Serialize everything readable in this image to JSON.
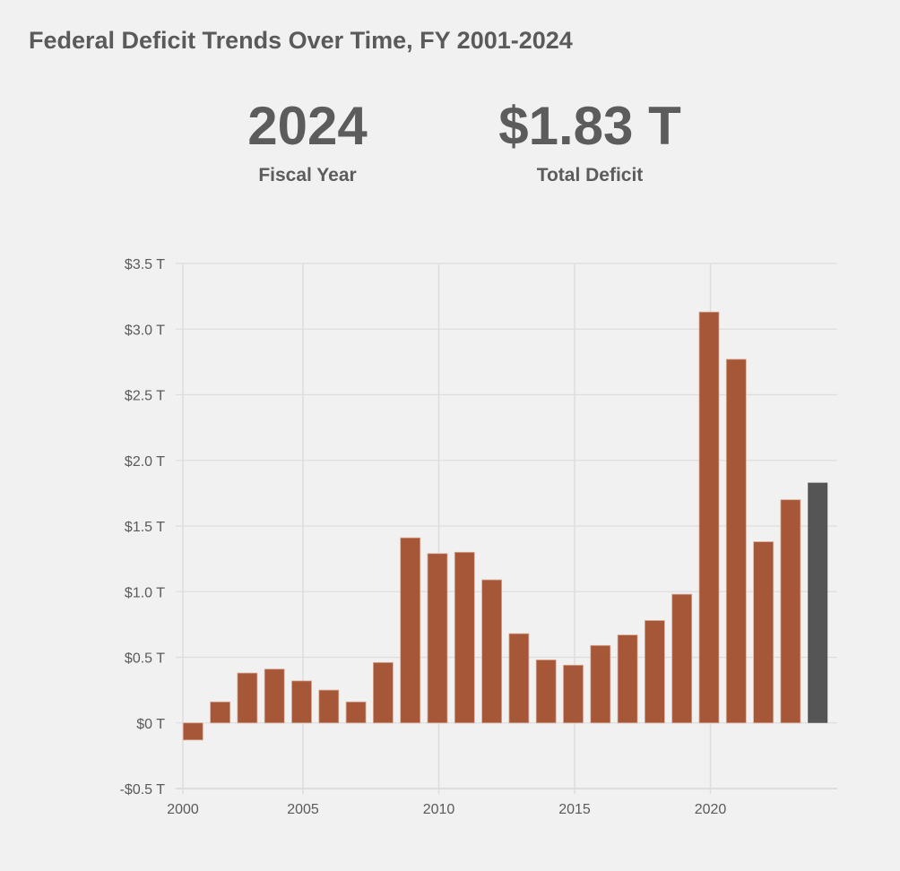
{
  "title": "Federal Deficit Trends Over Time, FY 2001-2024",
  "stats": [
    {
      "value": "2024",
      "label": "Fiscal Year"
    },
    {
      "value": "$1.83 T",
      "label": "Total Deficit"
    }
  ],
  "colors": {
    "bar": "#a65738",
    "highlight": "#555555",
    "background": "#f1f1f1",
    "grid": "#dddddd"
  },
  "chart_data": {
    "type": "bar",
    "title": "Federal Deficit Trends Over Time, FY 2001-2024",
    "xlabel": "",
    "ylabel": "",
    "ylim": [
      -0.5,
      3.5
    ],
    "grid": true,
    "y_ticks": [
      -0.5,
      0,
      0.5,
      1.0,
      1.5,
      2.0,
      2.5,
      3.0,
      3.5
    ],
    "y_tick_labels": [
      "-$0.5 T",
      "$0 T",
      "$0.5 T",
      "$1.0 T",
      "$1.5 T",
      "$2.0 T",
      "$2.5 T",
      "$3.0 T",
      "$3.5 T"
    ],
    "x_ticks": [
      2000,
      2005,
      2010,
      2015,
      2020
    ],
    "x_tick_labels": [
      "2000",
      "2005",
      "2010",
      "2015",
      "2020"
    ],
    "highlighted": 2024,
    "categories": [
      2001,
      2002,
      2003,
      2004,
      2005,
      2006,
      2007,
      2008,
      2009,
      2010,
      2011,
      2012,
      2013,
      2014,
      2015,
      2016,
      2017,
      2018,
      2019,
      2020,
      2021,
      2022,
      2023,
      2024
    ],
    "values": [
      -0.13,
      0.16,
      0.38,
      0.41,
      0.32,
      0.25,
      0.16,
      0.46,
      1.41,
      1.29,
      1.3,
      1.09,
      0.68,
      0.48,
      0.44,
      0.59,
      0.67,
      0.78,
      0.98,
      3.13,
      2.77,
      1.38,
      1.7,
      1.83
    ]
  }
}
